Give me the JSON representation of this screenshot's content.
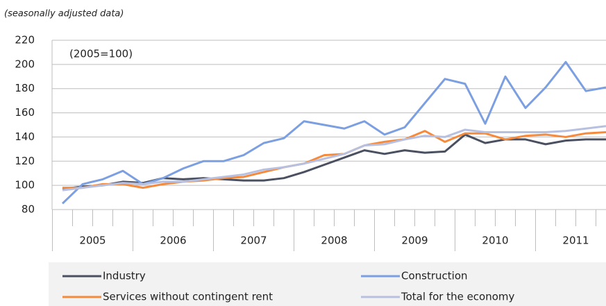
{
  "chart_data": {
    "type": "line",
    "subtitle": "(seasonally adjusted data)",
    "annotation": "(2005=100)",
    "categories": [
      "2005",
      null,
      null,
      null,
      "2006",
      null,
      null,
      null,
      "2007",
      null,
      null,
      null,
      "2008",
      null,
      null,
      null,
      "2009",
      null,
      null,
      null,
      "2010",
      null,
      null,
      null,
      "2011",
      null,
      null,
      null
    ],
    "ylim": [
      80,
      220
    ],
    "yticks": [
      80,
      100,
      120,
      140,
      160,
      180,
      200,
      220
    ],
    "grid": true,
    "legend": "bottom",
    "series": [
      {
        "name": "Industry",
        "color": "#4a5060",
        "values": [
          97,
          99,
          100,
          103,
          102,
          106,
          105,
          106,
          105,
          104,
          104,
          106,
          111,
          117,
          123,
          129,
          126,
          129,
          127,
          128,
          142,
          135,
          138,
          138,
          134,
          137,
          138,
          138
        ]
      },
      {
        "name": "Construction",
        "color": "#7b9fe0",
        "values": [
          85,
          101,
          105,
          112,
          101,
          106,
          114,
          120,
          120,
          125,
          135,
          139,
          153,
          150,
          147,
          153,
          142,
          148,
          168,
          188,
          184,
          151,
          190,
          164,
          181,
          202,
          178,
          181
        ]
      },
      {
        "name": "Services without contingent rent",
        "color": "#f58a3c",
        "values": [
          98,
          98,
          101,
          101,
          98,
          101,
          103,
          104,
          106,
          107,
          111,
          115,
          118,
          125,
          126,
          133,
          136,
          138,
          145,
          136,
          143,
          143,
          138,
          141,
          142,
          140,
          143,
          144
        ]
      },
      {
        "name": "Total for the economy",
        "color": "#b8c0e0",
        "values": [
          96,
          98,
          100,
          102,
          101,
          103,
          103,
          105,
          107,
          109,
          113,
          115,
          118,
          122,
          126,
          133,
          134,
          138,
          141,
          140,
          146,
          144,
          144,
          144,
          144,
          145,
          147,
          149
        ]
      }
    ]
  }
}
